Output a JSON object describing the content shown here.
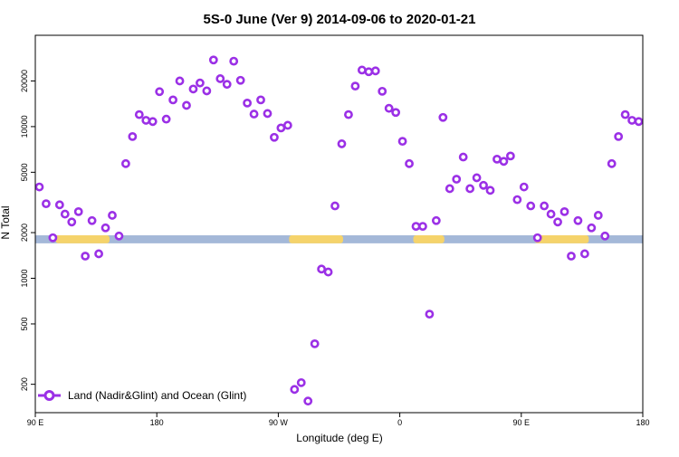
{
  "chart_data": {
    "type": "scatter",
    "title": "5S-0 June (Ver 9)   2014-09-06 to 2020-01-21",
    "xlabel": "Longitude (deg E)",
    "ylabel": "N Total",
    "xlim": [
      90,
      540
    ],
    "ylim": [
      130,
      40000
    ],
    "y_scale": "log",
    "grid": false,
    "legend_position": "bottom-left",
    "x_ticks": [
      {
        "value": 90,
        "label": "90 E"
      },
      {
        "value": 180,
        "label": "180"
      },
      {
        "value": 270,
        "label": "90 W"
      },
      {
        "value": 360,
        "label": "0"
      },
      {
        "value": 450,
        "label": "90 E"
      },
      {
        "value": 540,
        "label": "180"
      }
    ],
    "y_ticks": [
      {
        "value": 200,
        "label": "200"
      },
      {
        "value": 500,
        "label": "500"
      },
      {
        "value": 1000,
        "label": "1000"
      },
      {
        "value": 2000,
        "label": "2000"
      },
      {
        "value": 5000,
        "label": "5000"
      },
      {
        "value": 10000,
        "label": "10000"
      },
      {
        "value": 20000,
        "label": "20000"
      }
    ],
    "colors": {
      "series": "#9b30e6",
      "land": "#f5d36b",
      "ocean": "#a4b8d8"
    },
    "background_band": {
      "ymin": 1700,
      "ymax": 1920,
      "land_ranges": [
        [
          105,
          145
        ],
        [
          278,
          318
        ],
        [
          370,
          393
        ],
        [
          460,
          500
        ]
      ]
    },
    "series": [
      {
        "name": "Land (Nadir&Glint) and Ocean (Glint)",
        "x": [
          93,
          98,
          103,
          108,
          112,
          117,
          122,
          127,
          132,
          137,
          142,
          147,
          152,
          157,
          162,
          167,
          172,
          177,
          182,
          187,
          192,
          197,
          202,
          207,
          212,
          217,
          222,
          227,
          232,
          237,
          242,
          247,
          252,
          257,
          262,
          267,
          272,
          277,
          282,
          287,
          292,
          297,
          302,
          307,
          312,
          317,
          322,
          327,
          332,
          337,
          342,
          347,
          352,
          357,
          362,
          367,
          372,
          377,
          382,
          387,
          392,
          397,
          402,
          407,
          412,
          417,
          422,
          427,
          432,
          437,
          442,
          447,
          452,
          457,
          462,
          467,
          472,
          477,
          482,
          487,
          492,
          497,
          502,
          507,
          512,
          517,
          522,
          527,
          532,
          537
        ],
        "y": [
          4000,
          3100,
          1850,
          3050,
          2650,
          2350,
          2750,
          1400,
          2400,
          1450,
          2150,
          2600,
          1900,
          5700,
          8600,
          12000,
          11000,
          10800,
          17000,
          11200,
          15000,
          20000,
          13800,
          17700,
          19400,
          17200,
          27500,
          20700,
          19000,
          27000,
          20200,
          14300,
          12100,
          15000,
          12200,
          8500,
          9800,
          10200,
          185,
          205,
          155,
          370,
          1150,
          1100,
          3000,
          7700,
          12000,
          18500,
          23600,
          23000,
          23300,
          17100,
          13200,
          12400,
          8000,
          5700,
          2200,
          2200,
          580,
          2400,
          11500,
          3900,
          4500,
          6300,
          3900,
          4600,
          4100,
          3800,
          6100,
          5900,
          6400,
          3300,
          4000,
          3000,
          1850,
          3000,
          2650,
          2350,
          2750,
          1400,
          2400,
          1450,
          2150,
          2600,
          1900,
          5700,
          8600,
          12000,
          11000,
          10800
        ]
      }
    ]
  }
}
